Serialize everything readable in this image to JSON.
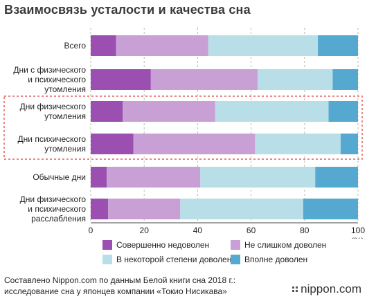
{
  "title": "Взаимосвязь усталости и качества сна",
  "colors": {
    "series": [
      "#9b4fb0",
      "#c9a0d6",
      "#b8dfe7",
      "#55a8cf"
    ],
    "highlight": "#e06060",
    "grid": "#bbbbbb"
  },
  "chart_data": {
    "type": "bar",
    "orientation": "horizontal",
    "stacked": true,
    "categories": [
      [
        "Всего"
      ],
      [
        "Дни с физического",
        "и психического",
        "утомления"
      ],
      [
        "Дни физического",
        "утомления"
      ],
      [
        "Дни психического",
        "утомления"
      ],
      [
        "Обычные дни"
      ],
      [
        "Дни физического",
        "и психического",
        "расслабления"
      ]
    ],
    "series": [
      {
        "name": "Совершенно недоволен",
        "values": [
          9.5,
          22.5,
          12,
          16,
          6,
          6.5
        ]
      },
      {
        "name": "Не слишком доволен",
        "values": [
          34.5,
          40,
          34.5,
          45.5,
          35,
          27
        ]
      },
      {
        "name": "В некоторой степени доволен",
        "values": [
          41,
          28,
          42.5,
          32,
          43,
          46
        ]
      },
      {
        "name": "Вполне доволен",
        "values": [
          15,
          9.5,
          11,
          6.5,
          16,
          20.5
        ]
      }
    ],
    "xlim": [
      0,
      100
    ],
    "xticks": [
      "0",
      "20",
      "40",
      "60",
      "80",
      "100"
    ],
    "unit": "(%)",
    "highlighted_categories": [
      2,
      3
    ],
    "grid": true,
    "legend_position": "bottom"
  },
  "legend_order": [
    0,
    2,
    1,
    3
  ],
  "footer": {
    "line1": "Составлено Nippon.com по данным Белой книги сна 2018 г.:",
    "line2": "исследование сна у японцев компании «Токио Нисикава»"
  },
  "brand": "nippon.com"
}
